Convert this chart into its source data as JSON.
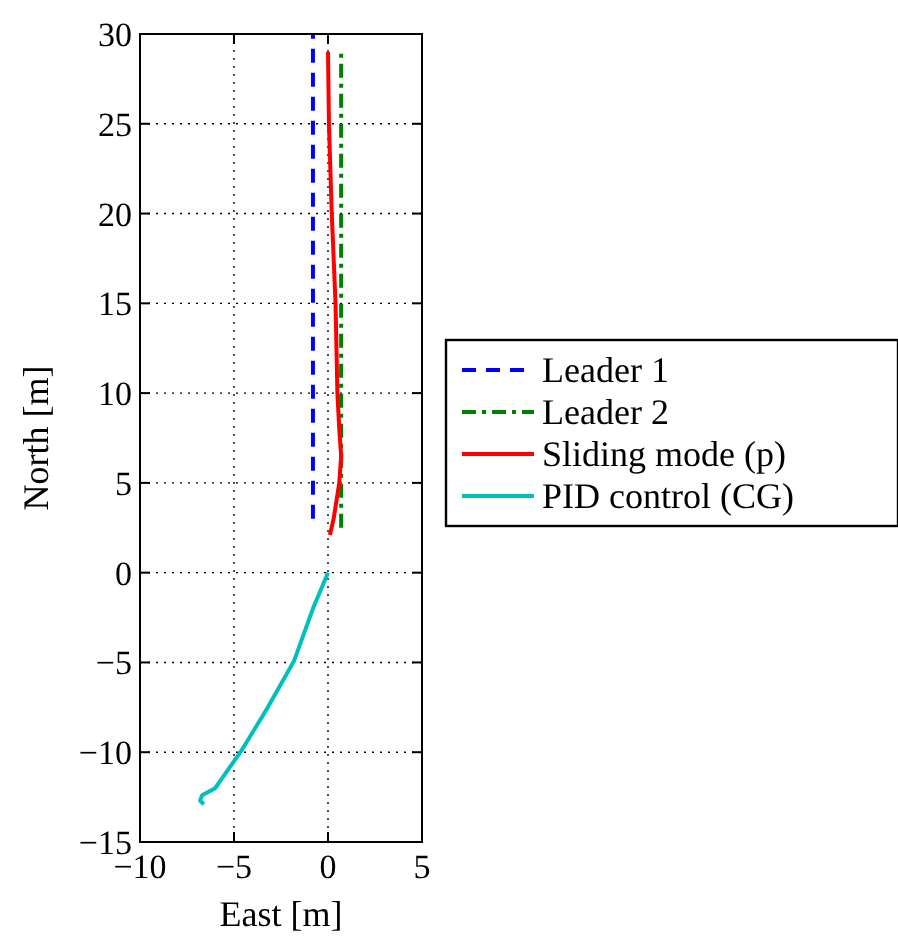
{
  "chart_data": {
    "type": "line",
    "xlabel": "East [m]",
    "ylabel": "North [m]",
    "xlim": [
      -10,
      5
    ],
    "ylim": [
      -15,
      30
    ],
    "xticks": [
      -10,
      -5,
      0,
      5
    ],
    "yticks": [
      -15,
      -10,
      -5,
      0,
      5,
      10,
      15,
      20,
      25,
      30
    ],
    "grid": true,
    "legend": "right",
    "series": [
      {
        "name": "Leader 1",
        "color": "#0000ff",
        "line_style": "dashed",
        "x": [
          -0.8,
          -0.8
        ],
        "values": [
          3,
          30
        ]
      },
      {
        "name": "Leader 2",
        "color": "#008000",
        "line_style": "dashdot",
        "x": [
          0.7,
          0.7
        ],
        "values": [
          2.5,
          29
        ]
      },
      {
        "name": "Sliding mode (p)",
        "color": "#ff0000",
        "line_style": "solid",
        "x": [
          0.1,
          0.3,
          0.6,
          0.7,
          0.6,
          0.5,
          0.4,
          0.2,
          0.05,
          0
        ],
        "values": [
          2.1,
          3,
          5,
          6.5,
          8,
          10,
          15,
          20,
          25,
          29
        ]
      },
      {
        "name": "PID control (CG)",
        "color": "#00bfbf",
        "line_style": "solid",
        "x": [
          0,
          -0.8,
          -1.8,
          -3.2,
          -4.6,
          -6.0,
          -6.7,
          -6.8,
          -6.6
        ],
        "values": [
          0,
          -2,
          -4.9,
          -7.5,
          -9.9,
          -12.0,
          -12.4,
          -12.7,
          -12.9
        ]
      }
    ]
  }
}
